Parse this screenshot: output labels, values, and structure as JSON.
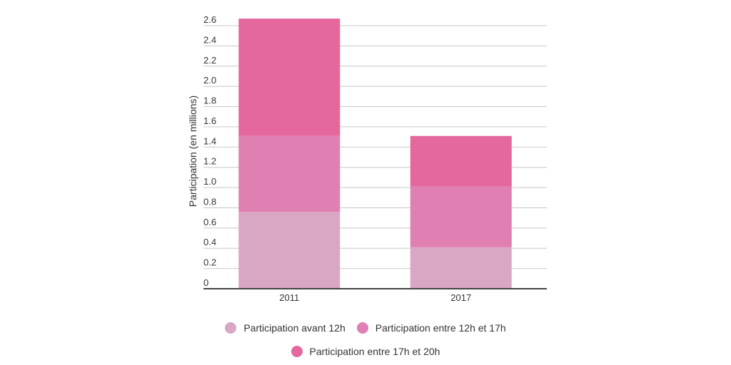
{
  "chart_data": {
    "type": "bar",
    "stacked": true,
    "categories": [
      "2011",
      "2017"
    ],
    "series": [
      {
        "name": "Participation avant 12h",
        "values": [
          0.76,
          0.41
        ],
        "color": "#d9a6c3"
      },
      {
        "name": "Participation entre 12h et 17h",
        "values": [
          0.75,
          0.6
        ],
        "color": "#e07fb2"
      },
      {
        "name": "Participation entre 17h et 20h",
        "values": [
          1.16,
          0.5
        ],
        "color": "#e4689c"
      }
    ],
    "ylabel": "Participation (en millions)",
    "xlabel": "",
    "title": "",
    "ylim": [
      0,
      2.6
    ],
    "yticks": [
      "0",
      "0.2",
      "0.4",
      "0.6",
      "0.8",
      "1.0",
      "1.2",
      "1.4",
      "1.6",
      "1.8",
      "2.0",
      "2.2",
      "2.4",
      "2.6"
    ],
    "grid": true,
    "legend_position": "bottom"
  }
}
